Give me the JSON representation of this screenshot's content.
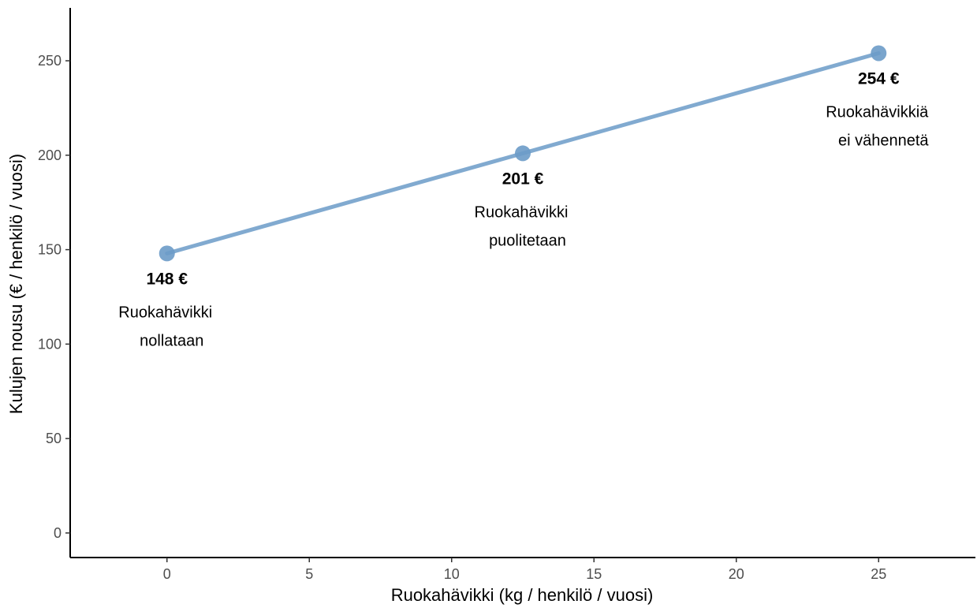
{
  "chart_data": {
    "type": "line",
    "xlabel": "Ruokahävikki (kg / henkilö / vuosi)",
    "ylabel": "Kulujen nousu (€ / henkilö / vuosi)",
    "xlim": [
      -3.4,
      28.4
    ],
    "ylim": [
      -13,
      278
    ],
    "xticks": [
      0,
      5,
      10,
      15,
      20,
      25
    ],
    "yticks": [
      0,
      50,
      100,
      150,
      200,
      250
    ],
    "grid": false,
    "line_color": "#6b9bc8",
    "series": [
      {
        "x": [
          0,
          12.5,
          25
        ],
        "y": [
          148,
          201,
          254
        ]
      }
    ],
    "annotations": [
      {
        "x": 0,
        "y": 148,
        "value_label": "148 €",
        "lines": [
          "Ruokahävikki",
          "nollataan"
        ]
      },
      {
        "x": 12.5,
        "y": 201,
        "value_label": "201 €",
        "lines": [
          "Ruokahävikki",
          "puolitetaan"
        ]
      },
      {
        "x": 25,
        "y": 254,
        "value_label": "254 €",
        "lines": [
          "Ruokahävikkiä",
          "ei vähennetä"
        ]
      }
    ]
  }
}
